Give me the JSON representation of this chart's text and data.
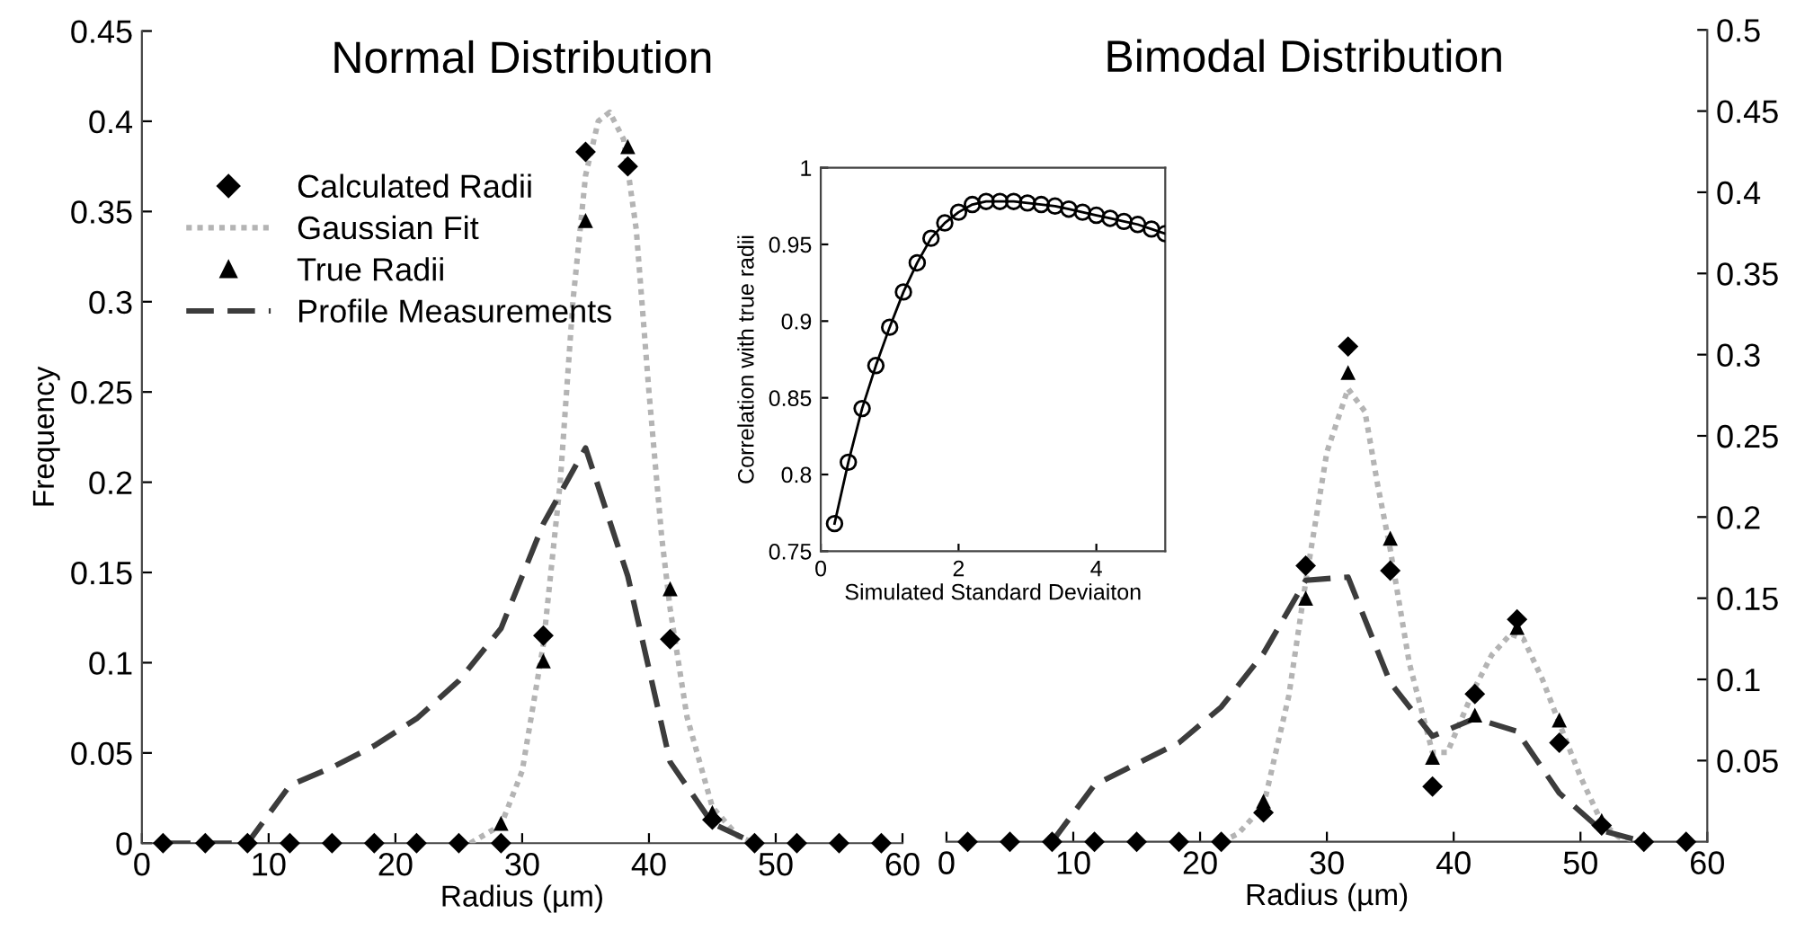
{
  "chart_data": [
    {
      "type": "line",
      "title": "Normal Distribution",
      "xlabel": "Radius (µm)",
      "ylabel": "Frequency",
      "xlim": [
        0,
        60
      ],
      "xticks": [
        0,
        10,
        20,
        30,
        40,
        50,
        60
      ],
      "ylim": [
        0,
        0.45
      ],
      "yticks": [
        0,
        0.05,
        0.1,
        0.15,
        0.2,
        0.25,
        0.3,
        0.35,
        0.4,
        0.45
      ],
      "legend": "top left",
      "grid": false,
      "series": [
        {
          "name": "Calculated Radii",
          "type": "scatter",
          "marker": "diamond",
          "color": "#000000",
          "x": [
            1.67,
            5,
            8.33,
            11.67,
            15,
            18.33,
            21.67,
            25,
            28.33,
            31.67,
            35,
            38.33,
            41.67,
            45,
            48.33,
            51.67,
            55,
            58.33
          ],
          "values": [
            0,
            0,
            0,
            0,
            0,
            0,
            0,
            0,
            0,
            0.115,
            0.383,
            0.375,
            0.113,
            0.013,
            0,
            0,
            0,
            0
          ]
        },
        {
          "name": "Gaussian Fit",
          "type": "line",
          "line_style": "dotted",
          "marker": "none",
          "color": "#b4b4b4",
          "x": [
            25.9,
            28.33,
            30,
            31.67,
            33,
            34,
            35,
            36,
            36.9,
            38,
            39,
            40,
            41,
            41.67,
            43,
            45,
            47,
            48.33
          ],
          "values": [
            0,
            0.01,
            0.04,
            0.11,
            0.2,
            0.3,
            0.37,
            0.4,
            0.405,
            0.39,
            0.34,
            0.25,
            0.17,
            0.13,
            0.07,
            0.02,
            0.004,
            0
          ]
        },
        {
          "name": "True Radii",
          "type": "scatter",
          "marker": "triangle",
          "color": "#000000",
          "x": [
            28.33,
            31.67,
            35,
            38.33,
            41.67,
            45
          ],
          "values": [
            0.011,
            0.101,
            0.345,
            0.386,
            0.141,
            0.017
          ]
        },
        {
          "name": "Profile Measurements",
          "type": "line",
          "line_style": "dashed",
          "marker": "none",
          "color": "#3c3c3c",
          "x": [
            1.67,
            5,
            8.33,
            11.67,
            15,
            18.33,
            21.67,
            25,
            28.33,
            31.67,
            35,
            38.33,
            41.67,
            45,
            48.33
          ],
          "values": [
            0,
            0,
            0,
            0.032,
            0.042,
            0.054,
            0.069,
            0.09,
            0.119,
            0.177,
            0.219,
            0.148,
            0.045,
            0.011,
            0
          ]
        }
      ]
    },
    {
      "type": "line",
      "title": "Bimodal Distribution",
      "xlabel": "Radius (µm)",
      "xlim": [
        0,
        60
      ],
      "xticks": [
        0,
        10,
        20,
        30,
        40,
        50,
        60
      ],
      "y2lim": [
        0,
        0.5
      ],
      "y2ticks": [
        0.05,
        0.1,
        0.15,
        0.2,
        0.25,
        0.3,
        0.35,
        0.4,
        0.45,
        0.5
      ],
      "grid": false,
      "series": [
        {
          "type": "scatter",
          "axis": "y2",
          "marker": "diamond",
          "color": "#000000",
          "x": [
            1.67,
            5,
            8.33,
            11.67,
            15,
            18.33,
            21.67,
            25,
            28.33,
            31.67,
            35,
            38.33,
            41.67,
            45,
            48.33,
            51.67,
            55,
            58.33
          ],
          "values": [
            0,
            0,
            0,
            0,
            0,
            0,
            0,
            0.018,
            0.17,
            0.305,
            0.167,
            0.034,
            0.091,
            0.137,
            0.061,
            0.01,
            0,
            0
          ]
        },
        {
          "type": "line",
          "axis": "y2",
          "line_style": "dotted",
          "marker": "none",
          "color": "#b4b4b4",
          "x": [
            21.67,
            23,
            25,
            27,
            28.33,
            30,
            31.67,
            33,
            34,
            35,
            36.5,
            38.33,
            39.5,
            41.67,
            43,
            44.5,
            45.5,
            47,
            48.33,
            50,
            51.67,
            53,
            55
          ],
          "values": [
            0,
            0.005,
            0.022,
            0.09,
            0.16,
            0.24,
            0.279,
            0.265,
            0.22,
            0.18,
            0.11,
            0.055,
            0.055,
            0.095,
            0.115,
            0.128,
            0.125,
            0.1,
            0.073,
            0.04,
            0.012,
            0.003,
            0
          ]
        },
        {
          "type": "scatter",
          "axis": "y2",
          "marker": "triangle",
          "color": "#000000",
          "x": [
            25,
            28.33,
            31.67,
            35,
            38.33,
            41.67,
            45,
            48.33,
            51.67
          ],
          "values": [
            0.025,
            0.15,
            0.289,
            0.187,
            0.052,
            0.078,
            0.132,
            0.075,
            0.013
          ]
        },
        {
          "type": "line",
          "axis": "y2",
          "line_style": "dashed",
          "marker": "none",
          "color": "#3c3c3c",
          "x": [
            8.33,
            11.67,
            15,
            18.33,
            21.67,
            25,
            28.33,
            31.67,
            35,
            38.33,
            41.67,
            45,
            48.33,
            51.67,
            55
          ],
          "values": [
            0,
            0.035,
            0.048,
            0.061,
            0.083,
            0.116,
            0.161,
            0.163,
            0.098,
            0.065,
            0.076,
            0.068,
            0.03,
            0.007,
            0
          ]
        }
      ]
    },
    {
      "type": "line",
      "xlabel": "Simulated Standard Deviaiton",
      "ylabel": "Correlation with true radii",
      "xlim": [
        0,
        5
      ],
      "xticks": [
        0,
        2,
        4
      ],
      "ylim": [
        0.75,
        1
      ],
      "yticks": [
        0.75,
        0.8,
        0.85,
        0.9,
        0.95,
        1
      ],
      "grid": false,
      "marker": "circle",
      "line_style": "solid",
      "series": [
        {
          "color": "#000000",
          "x": [
            0.2,
            0.4,
            0.6,
            0.8,
            1.0,
            1.2,
            1.4,
            1.6,
            1.8,
            2.0,
            2.2,
            2.4,
            2.6,
            2.8,
            3.0,
            3.2,
            3.4,
            3.6,
            3.8,
            4.0,
            4.2,
            4.4,
            4.6,
            4.8,
            5.0
          ],
          "values": [
            0.768,
            0.808,
            0.843,
            0.871,
            0.896,
            0.919,
            0.938,
            0.954,
            0.964,
            0.971,
            0.976,
            0.978,
            0.978,
            0.978,
            0.977,
            0.976,
            0.975,
            0.973,
            0.971,
            0.969,
            0.967,
            0.965,
            0.963,
            0.96,
            0.957
          ]
        }
      ]
    }
  ]
}
